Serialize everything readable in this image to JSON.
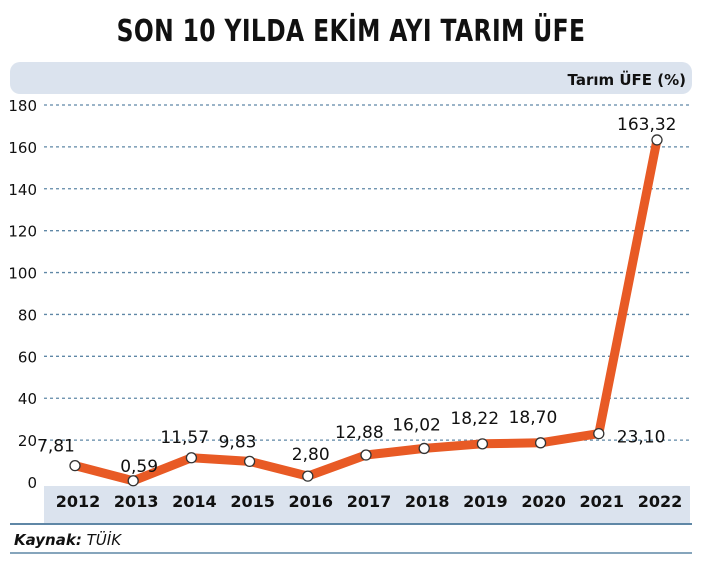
{
  "title": "SON 10 YILDA EKİM AYI TARIM ÜFE",
  "source": {
    "label": "Kaynak:",
    "value": "TÜİK"
  },
  "colors": {
    "line": "#e85a25",
    "band": "#dbe3ee",
    "grid": "#5f87a6",
    "text": "#111111"
  },
  "chart_data": {
    "type": "line",
    "title": "SON 10 YILDA EKİM AYI TARIM ÜFE",
    "ylabel": "Tarım ÜFE (%)",
    "xlabel": "",
    "ylim": [
      0,
      180
    ],
    "yticks": [
      0,
      20,
      40,
      60,
      80,
      100,
      120,
      140,
      160,
      180
    ],
    "grid": true,
    "categories": [
      "2012",
      "2013",
      "2014",
      "2015",
      "2016",
      "2017",
      "2018",
      "2019",
      "2020",
      "2021",
      "2022"
    ],
    "values": [
      7.81,
      0.59,
      11.57,
      9.83,
      2.8,
      12.88,
      16.02,
      18.22,
      18.7,
      23.1,
      163.32
    ],
    "value_labels": [
      "7,81",
      "0,59",
      "11,57",
      "9,83",
      "2,80",
      "12,88",
      "16,02",
      "18,22",
      "18,70",
      "23,10",
      "163,32"
    ]
  }
}
